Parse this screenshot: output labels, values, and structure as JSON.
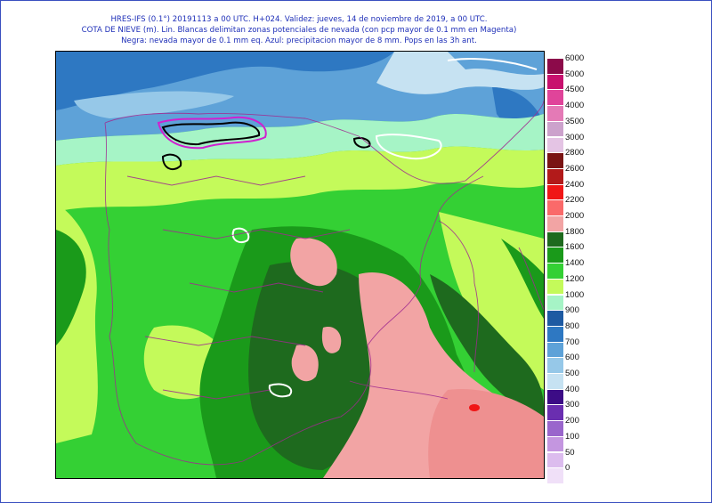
{
  "header": {
    "line1": "HRES-IFS (0.1°) 20191113 a 00 UTC.  H+024. Validez: jueves, 14 de noviembre de 2019,  a  00 UTC.",
    "line2": "COTA DE NIEVE (m). Lin. Blancas delimitan zonas potenciales de nevada (con pcp mayor de 0.1 mm en Magenta)",
    "line3": "Negra: nevada mayor de 0.1 mm eq. Azul: precipitacion mayor de 8 mm.  Pops en las 3h ant."
  },
  "legend": [
    {
      "label": "6000",
      "color": "#8c0a4a"
    },
    {
      "label": "5000",
      "color": "#c8106e"
    },
    {
      "label": "4500",
      "color": "#e0449a"
    },
    {
      "label": "4000",
      "color": "#e47ab6"
    },
    {
      "label": "3500",
      "color": "#cca2cc"
    },
    {
      "label": "3000",
      "color": "#e4c4e4"
    },
    {
      "label": "2800",
      "color": "#7a1414"
    },
    {
      "label": "2600",
      "color": "#b21a1a"
    },
    {
      "label": "2400",
      "color": "#f01616"
    },
    {
      "label": "2200",
      "color": "#fa6a6a"
    },
    {
      "label": "2000",
      "color": "#f2a4a4"
    },
    {
      "label": "1800",
      "color": "#1e6a1e"
    },
    {
      "label": "1600",
      "color": "#1a9a1a"
    },
    {
      "label": "1400",
      "color": "#34d034"
    },
    {
      "label": "1200",
      "color": "#c4fa5a"
    },
    {
      "label": "1000",
      "color": "#a6f4c6"
    },
    {
      "label": "900",
      "color": "#1e5aa2"
    },
    {
      "label": "800",
      "color": "#2e78c2"
    },
    {
      "label": "700",
      "color": "#5ea2d8"
    },
    {
      "label": "600",
      "color": "#96c8e8"
    },
    {
      "label": "500",
      "color": "#c6e2f2"
    },
    {
      "label": "400",
      "color": "#3c0c86"
    },
    {
      "label": "300",
      "color": "#6a2eb0"
    },
    {
      "label": "200",
      "color": "#9a66cc"
    },
    {
      "label": "100",
      "color": "#c496e0"
    },
    {
      "label": "50",
      "color": "#dcbcee"
    },
    {
      "label": "0",
      "color": "#f0e0f8"
    }
  ]
}
